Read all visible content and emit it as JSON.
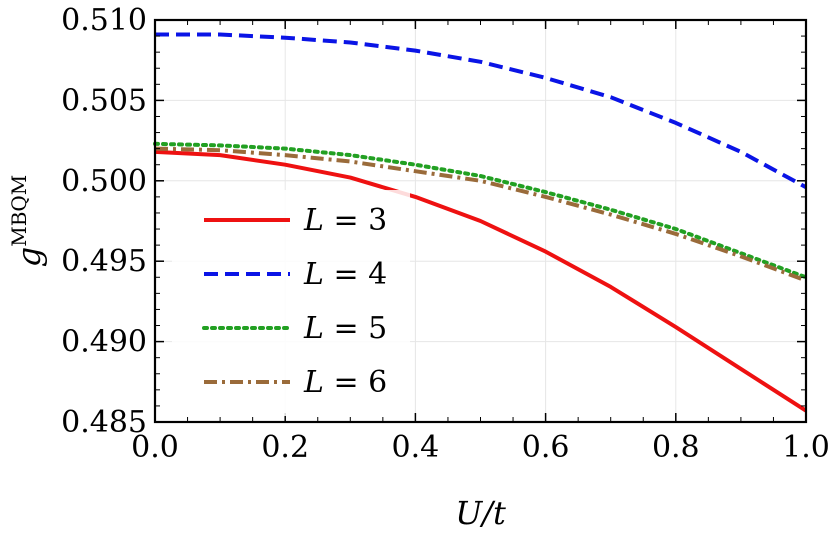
{
  "chart_data": {
    "type": "line",
    "xlabel": "U/t",
    "ylabel": "g^MBQM",
    "ylabel_base": "g",
    "ylabel_sup": "MBQM",
    "xlim": [
      0.0,
      1.0
    ],
    "ylim": [
      0.485,
      0.51
    ],
    "xticks": [
      "0.0",
      "0.2",
      "0.4",
      "0.6",
      "0.8",
      "1.0"
    ],
    "yticks": [
      "0.485",
      "0.490",
      "0.495",
      "0.500",
      "0.505",
      "0.510"
    ],
    "grid": true,
    "legend_position": "left-center",
    "x": [
      0.0,
      0.1,
      0.2,
      0.3,
      0.4,
      0.5,
      0.6,
      0.7,
      0.8,
      0.9,
      1.0
    ],
    "series": [
      {
        "name": "L = 3",
        "legend_var": "L",
        "legend_rest": " = 3",
        "color": "#ee1111",
        "style": "solid",
        "values": [
          0.5018,
          0.5016,
          0.501,
          0.5002,
          0.499,
          0.4975,
          0.4956,
          0.4934,
          0.4909,
          0.4883,
          0.4857
        ]
      },
      {
        "name": "L = 4",
        "legend_var": "L",
        "legend_rest": " = 4",
        "color": "#0a14e6",
        "style": "dashed",
        "values": [
          0.5091,
          0.5091,
          0.5089,
          0.5086,
          0.5081,
          0.5074,
          0.5064,
          0.5052,
          0.5036,
          0.5018,
          0.4996
        ]
      },
      {
        "name": "L = 5",
        "legend_var": "L",
        "legend_rest": " = 5",
        "color": "#22a022",
        "style": "dotted",
        "values": [
          0.5023,
          0.5022,
          0.502,
          0.5016,
          0.501,
          0.5003,
          0.4993,
          0.4982,
          0.497,
          0.4955,
          0.494
        ]
      },
      {
        "name": "L = 6",
        "legend_var": "L",
        "legend_rest": " = 6",
        "color": "#9a6b3a",
        "style": "dashdot",
        "values": [
          0.502,
          0.5019,
          0.5016,
          0.5012,
          0.5006,
          0.5,
          0.499,
          0.4979,
          0.4967,
          0.4953,
          0.4938
        ]
      }
    ]
  }
}
